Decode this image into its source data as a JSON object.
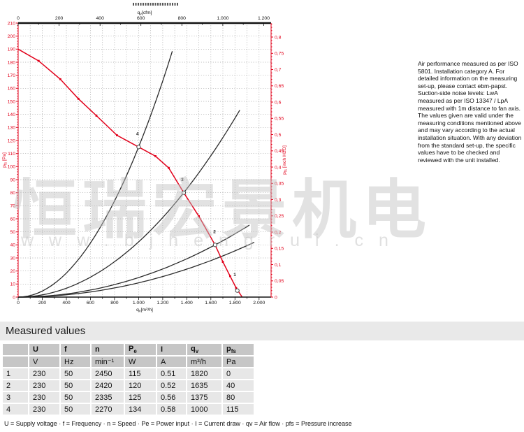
{
  "chart_data": {
    "type": "line",
    "title": "",
    "x_max": 2100,
    "y_max": 210,
    "cfm_factor": 1.699,
    "inchH2O_to_Pa": 249.089,
    "bottom_label": {
      "pre": "q",
      "sub": "v",
      "post": "[m³/h]"
    },
    "top_label": {
      "pre": "q",
      "sub": "v",
      "post": "[cfm]"
    },
    "left_label": {
      "pre": "p",
      "sub": "fs",
      "post": " [Pa]"
    },
    "right_label": {
      "pre": "p",
      "sub": "fs",
      "post": " [inch H2O]"
    },
    "bottom_ticks": [
      "0",
      "200",
      "400",
      "600",
      "800",
      "1.000",
      "1.200",
      "1.400",
      "1.600",
      "1.800",
      "2.000"
    ],
    "top_ticks": [
      "0",
      "200",
      "400",
      "600",
      "800",
      "1.000",
      "1.200"
    ],
    "left_tick_min": 0,
    "left_tick_max": 210,
    "left_tick_step": 10,
    "right_ticks": [
      "0",
      "0,05",
      "0,1",
      "0,15",
      "0,2",
      "0,25",
      "0,3",
      "0,35",
      "0,4",
      "0,45",
      "0,5",
      "0,55",
      "0,6",
      "0,65",
      "0,7",
      "0,75",
      "0,8"
    ],
    "grid": {
      "x_step": 100,
      "y_step": 10
    },
    "fan_curve": [
      [
        0,
        190
      ],
      [
        170,
        181
      ],
      [
        350,
        167
      ],
      [
        500,
        152
      ],
      [
        650,
        139
      ],
      [
        820,
        124
      ],
      [
        1000,
        115
      ],
      [
        1140,
        108
      ],
      [
        1250,
        99
      ],
      [
        1375,
        80
      ],
      [
        1500,
        62
      ],
      [
        1635,
        40
      ],
      [
        1700,
        27
      ],
      [
        1760,
        16
      ],
      [
        1810,
        7
      ],
      [
        1860,
        0
      ]
    ],
    "system_curves": [
      {
        "q0": 1000,
        "p0": 115,
        "q_end": 1302
      },
      {
        "q0": 1375,
        "p0": 80,
        "q_end": 1855
      },
      {
        "q0": 1635,
        "p0": 40,
        "q_end": 1938
      },
      {
        "q0": 1960,
        "p0": 42,
        "q_end": 1960
      }
    ],
    "operating_points": [
      {
        "label": "4",
        "qv": 1000,
        "pfs": 115,
        "pos": [
          1000,
          115
        ],
        "label_at": [
          980,
          124
        ]
      },
      {
        "label": "3",
        "qv": 1375,
        "pfs": 80,
        "pos": [
          1375,
          80
        ],
        "label_at": [
          1352,
          89
        ]
      },
      {
        "label": "2",
        "qv": 1635,
        "pfs": 40,
        "pos": [
          1635,
          40
        ],
        "label_at": [
          1620,
          49
        ]
      },
      {
        "label": "1",
        "qv": 1820,
        "pfs": 0,
        "pos": [
          1820,
          5
        ],
        "label_at": [
          1788,
          16
        ]
      }
    ],
    "colors": {
      "curve_red": "#e2001a",
      "curve_black": "#2b2b2b"
    }
  },
  "right_note": {
    "text": "Air performance measured as per ISO 5801. Installation category A. For detailed information on the measuring set-up, please contact ebm-papst. Suction-side noise levels: LwA measured as per ISO 13347 / LpA measured with 1m distance to fan axis. The values given are valid under the measuring conditions mentioned above and may vary according to the actual installation situation. With any deviation from the standard set-up, the specific values have to be checked and reviewed with the unit installed."
  },
  "watermark": {
    "cn": "恒瑞宏景机电",
    "url": "www.bjhengrui.cn"
  },
  "measured": {
    "section_title": "Measured values",
    "columns": [
      {
        "sym": "U",
        "sub": "",
        "unit": "V"
      },
      {
        "sym": "f",
        "sub": "",
        "unit": "Hz"
      },
      {
        "sym": "n",
        "sub": "",
        "unit": "min⁻¹"
      },
      {
        "sym": "P",
        "sub": "e",
        "unit": "W"
      },
      {
        "sym": "I",
        "sub": "",
        "unit": "A"
      },
      {
        "sym": "q",
        "sub": "v",
        "unit": "m³/h"
      },
      {
        "sym": "p",
        "sub": "fs",
        "unit": "Pa"
      }
    ],
    "rows": [
      [
        "1",
        "230",
        "50",
        "2450",
        "115",
        "0.51",
        "1820",
        "0"
      ],
      [
        "2",
        "230",
        "50",
        "2420",
        "120",
        "0.52",
        "1635",
        "40"
      ],
      [
        "3",
        "230",
        "50",
        "2335",
        "125",
        "0.56",
        "1375",
        "80"
      ],
      [
        "4",
        "230",
        "50",
        "2270",
        "134",
        "0.58",
        "1000",
        "115"
      ]
    ],
    "legend": "U = Supply voltage · f = Frequency · n = Speed · Pe = Power input · I = Current draw · qv = Air flow · pfs = Pressure increase"
  }
}
